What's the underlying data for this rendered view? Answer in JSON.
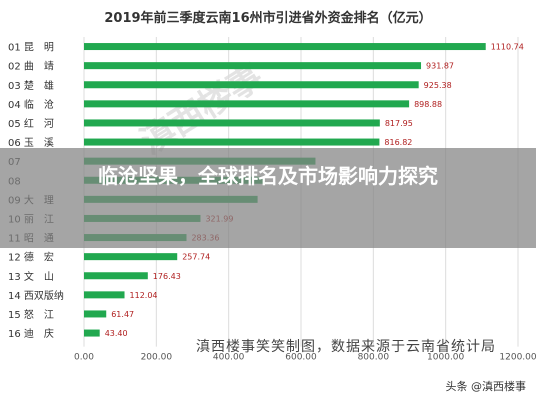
{
  "chart_data": {
    "type": "bar",
    "orientation": "horizontal",
    "title": "2019年前三季度云南16州市引进省外资金排名（亿元）",
    "categories": [
      "01 昆　明",
      "02 曲　靖",
      "03 楚　雄",
      "04 临　沧",
      "05 红　河",
      "06 玉　溪",
      "07",
      "08",
      "09 大　理",
      "10 丽　江",
      "11 昭　通",
      "12 德　宏",
      "13 文　山",
      "14 西双版纳",
      "15 怒　江",
      "16 迪　庆"
    ],
    "values": [
      1110.74,
      931.87,
      925.38,
      898.88,
      817.95,
      816.82,
      640.0,
      500.0,
      480.0,
      321.99,
      283.36,
      257.74,
      176.43,
      112.04,
      61.47,
      43.4
    ],
    "value_labels": [
      "1110.74",
      "931.87",
      "925.38",
      "898.88",
      "817.95",
      "816.82",
      "",
      "",
      "",
      "321.99",
      "283.36",
      "257.74",
      "176.43",
      "112.04",
      "61.47",
      "43.40"
    ],
    "xticks": [
      "0.00",
      "200.00",
      "400.00",
      "600.00",
      "800.00",
      "1000.00",
      "1200.00"
    ],
    "xlim": [
      0,
      1200
    ],
    "grid": true,
    "bar_color": "#21a84f"
  },
  "overlay": {
    "title": "临沧坚果，全球排名及市场影响力探究"
  },
  "credit": "滇西楼事笑笑制图，数据来源于云南省统计局",
  "watermark": "头条 @滇西楼事",
  "background_watermark": "滇西楼事"
}
